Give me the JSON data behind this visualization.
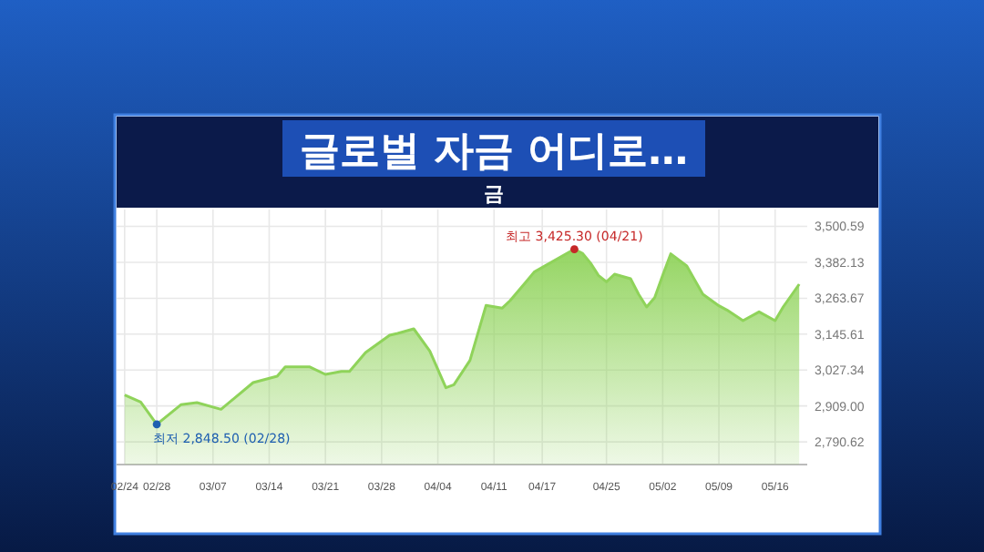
{
  "chart_data": {
    "type": "area",
    "title": "글로벌 자금 어디로…",
    "subtitle": "금",
    "x": [
      "--02-24",
      "--02-26",
      "--02-28",
      "--03-03",
      "--03-05",
      "--03-08",
      "--03-12",
      "--03-15",
      "--03-16",
      "--03-19",
      "--03-21",
      "--03-23",
      "--03-24",
      "--03-26",
      "--03-29",
      "--03-30",
      "--04-01",
      "--04-03",
      "--04-05",
      "--04-06",
      "--04-08",
      "--04-10",
      "--04-12",
      "--04-13",
      "--04-15",
      "--04-16",
      "--04-21",
      "--04-22",
      "--04-23",
      "--04-24",
      "--04-25",
      "--04-26",
      "--04-28",
      "--04-29",
      "--04-30",
      "--05-01",
      "--05-02",
      "--05-03",
      "--05-05",
      "--05-07",
      "--05-09",
      "--05-10",
      "--05-12",
      "--05-14",
      "--05-16",
      "--05-17",
      "--05-19"
    ],
    "series": [
      {
        "color": "#8fd35a",
        "values": [
          2945,
          2922,
          2848.5,
          2913,
          2920,
          2898,
          2986,
          3007,
          3038,
          3038,
          3013,
          3023,
          3023,
          3085,
          3142,
          3148,
          3163,
          3090,
          2969,
          2979,
          3059,
          3240,
          3231,
          3256,
          3318,
          3350,
          3425.3,
          3412,
          3380,
          3339,
          3318,
          3343,
          3328,
          3277,
          3235,
          3266,
          3339,
          3410,
          3370,
          3277,
          3239,
          3225,
          3190,
          3219,
          3190,
          3235,
          3310
        ]
      }
    ],
    "xlim": [
      "--02-23",
      "--05-20"
    ],
    "xticks": [
      {
        "value": "--02-24",
        "label": "02/24"
      },
      {
        "value": "--02-28",
        "label": "02/28"
      },
      {
        "value": "--03-07",
        "label": "03/07"
      },
      {
        "value": "--03-14",
        "label": "03/14"
      },
      {
        "value": "--03-21",
        "label": "03/21"
      },
      {
        "value": "--03-28",
        "label": "03/28"
      },
      {
        "value": "--04-04",
        "label": "04/04"
      },
      {
        "value": "--04-11",
        "label": "04/11"
      },
      {
        "value": "--04-17",
        "label": "04/17"
      },
      {
        "value": "--04-25",
        "label": "04/25"
      },
      {
        "value": "--05-02",
        "label": "05/02"
      },
      {
        "value": "--05-09",
        "label": "05/09"
      },
      {
        "value": "--05-16",
        "label": "05/16"
      }
    ],
    "ylim": [
      2716,
      3556
    ],
    "yticks": [
      {
        "value": 2790.62,
        "label": "2,790.62"
      },
      {
        "value": 2909.0,
        "label": "2,909.00"
      },
      {
        "value": 3027.34,
        "label": "3,027.34"
      },
      {
        "value": 3145.61,
        "label": "3,145.61"
      },
      {
        "value": 3263.67,
        "label": "3,263.67"
      },
      {
        "value": 3382.13,
        "label": "3,382.13"
      },
      {
        "value": 3500.59,
        "label": "3,500.59"
      }
    ],
    "grid": true,
    "annotations": [
      {
        "text": "최고 3,425.30 (04/21)",
        "x": "--04-21",
        "y": 3425.3
      },
      {
        "text": "최저 2,848.50 (02/28)",
        "x": "--02-28",
        "y": 2848.5
      }
    ]
  }
}
